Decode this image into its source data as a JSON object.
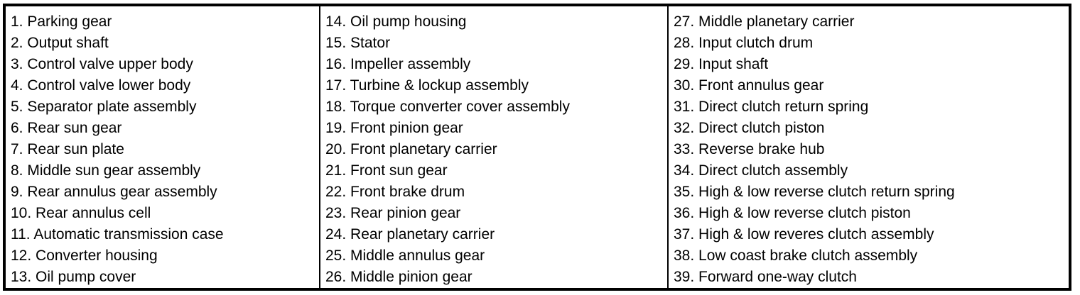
{
  "page": {
    "background_color": "#ffffff",
    "border_color": "#000000",
    "text_color": "#000000",
    "description": "Automatic transmission parts legend, numbered list 1-39 in three bordered columns"
  },
  "parts_table": {
    "columns": [
      {
        "items": [
          {
            "num": "1.",
            "label": "Parking gear"
          },
          {
            "num": "2.",
            "label": "Output shaft"
          },
          {
            "num": "3.",
            "label": "Control valve upper body"
          },
          {
            "num": "4.",
            "label": "Control valve lower body"
          },
          {
            "num": "5.",
            "label": "Separator plate assembly"
          },
          {
            "num": "6.",
            "label": "Rear sun gear"
          },
          {
            "num": "7.",
            "label": "Rear sun plate"
          },
          {
            "num": "8.",
            "label": "Middle sun gear assembly"
          },
          {
            "num": "9.",
            "label": "Rear annulus gear assembly"
          },
          {
            "num": "10.",
            "label": "Rear annulus cell"
          },
          {
            "num": "11.",
            "label": "Automatic transmission case"
          },
          {
            "num": "12.",
            "label": "Converter housing"
          },
          {
            "num": "13.",
            "label": "Oil pump cover"
          }
        ]
      },
      {
        "items": [
          {
            "num": "14.",
            "label": "Oil pump housing"
          },
          {
            "num": "15.",
            "label": "Stator"
          },
          {
            "num": "16.",
            "label": "Impeller assembly"
          },
          {
            "num": "17.",
            "label": "Turbine & lockup assembly"
          },
          {
            "num": "18.",
            "label": "Torque converter cover assembly"
          },
          {
            "num": "19.",
            "label": "Front pinion gear"
          },
          {
            "num": "20.",
            "label": "Front planetary carrier"
          },
          {
            "num": "21.",
            "label": "Front sun gear"
          },
          {
            "num": "22.",
            "label": "Front brake drum"
          },
          {
            "num": "23.",
            "label": "Rear pinion gear"
          },
          {
            "num": "24.",
            "label": "Rear planetary carrier"
          },
          {
            "num": "25.",
            "label": "Middle annulus gear"
          },
          {
            "num": "26.",
            "label": "Middle pinion gear"
          }
        ]
      },
      {
        "items": [
          {
            "num": "27.",
            "label": "Middle planetary carrier"
          },
          {
            "num": "28.",
            "label": "Input clutch drum"
          },
          {
            "num": "29.",
            "label": "Input shaft"
          },
          {
            "num": "30.",
            "label": "Front annulus gear"
          },
          {
            "num": "31.",
            "label": "Direct clutch return spring"
          },
          {
            "num": "32.",
            "label": "Direct clutch piston"
          },
          {
            "num": "33.",
            "label": "Reverse brake hub"
          },
          {
            "num": "34.",
            "label": "Direct clutch assembly"
          },
          {
            "num": "35.",
            "label": "High & low reverse clutch return spring"
          },
          {
            "num": "36.",
            "label": "High & low reverse clutch piston"
          },
          {
            "num": "37.",
            "label": "High & low reveres clutch assembly"
          },
          {
            "num": "38.",
            "label": "Low coast brake clutch assembly"
          },
          {
            "num": "39.",
            "label": "Forward one-way clutch"
          }
        ]
      }
    ]
  }
}
